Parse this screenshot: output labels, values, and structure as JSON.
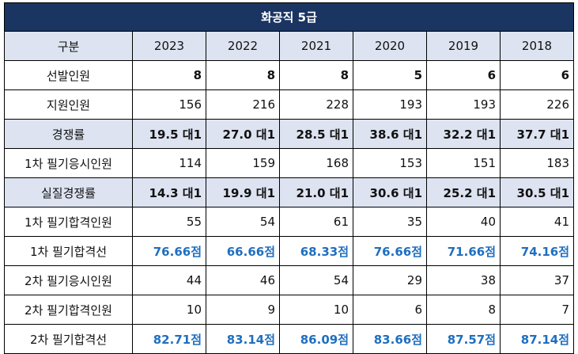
{
  "title": "화공직 5급",
  "header": {
    "label": "구분",
    "years": [
      "2023",
      "2022",
      "2021",
      "2020",
      "2019",
      "2018"
    ]
  },
  "rows": [
    {
      "label": "선발인원",
      "style": "bold",
      "shade": false,
      "values": [
        "8",
        "8",
        "8",
        "5",
        "6",
        "6"
      ]
    },
    {
      "label": "지원인원",
      "style": "normal",
      "shade": false,
      "values": [
        "156",
        "216",
        "228",
        "193",
        "193",
        "226"
      ]
    },
    {
      "label": "경쟁률",
      "style": "bold",
      "shade": true,
      "values": [
        "19.5 대1",
        "27.0 대1",
        "28.5 대1",
        "38.6 대1",
        "32.2 대1",
        "37.7 대1"
      ]
    },
    {
      "label": "1차 필기응시인원",
      "style": "normal",
      "shade": false,
      "values": [
        "114",
        "159",
        "168",
        "153",
        "151",
        "183"
      ]
    },
    {
      "label": "실질경쟁률",
      "style": "bold",
      "shade": true,
      "values": [
        "14.3 대1",
        "19.9 대1",
        "21.0 대1",
        "30.6 대1",
        "25.2 대1",
        "30.5 대1"
      ]
    },
    {
      "label": "1차 필기합격인원",
      "style": "normal",
      "shade": false,
      "values": [
        "55",
        "54",
        "61",
        "35",
        "40",
        "41"
      ]
    },
    {
      "label": "1차 필기합격선",
      "style": "blue",
      "shade": false,
      "values": [
        "76.66점",
        "66.66점",
        "68.33점",
        "76.66점",
        "71.66점",
        "74.16점"
      ]
    },
    {
      "label": "2차 필기응시인원",
      "style": "normal",
      "shade": false,
      "values": [
        "44",
        "46",
        "54",
        "29",
        "38",
        "37"
      ]
    },
    {
      "label": "2차 필기합격인원",
      "style": "normal",
      "shade": false,
      "values": [
        "10",
        "9",
        "10",
        "6",
        "8",
        "7"
      ]
    },
    {
      "label": "2차 필기합격선",
      "style": "blue",
      "shade": false,
      "values": [
        "82.71점",
        "83.14점",
        "86.09점",
        "83.66점",
        "87.57점",
        "87.14점"
      ]
    }
  ]
}
